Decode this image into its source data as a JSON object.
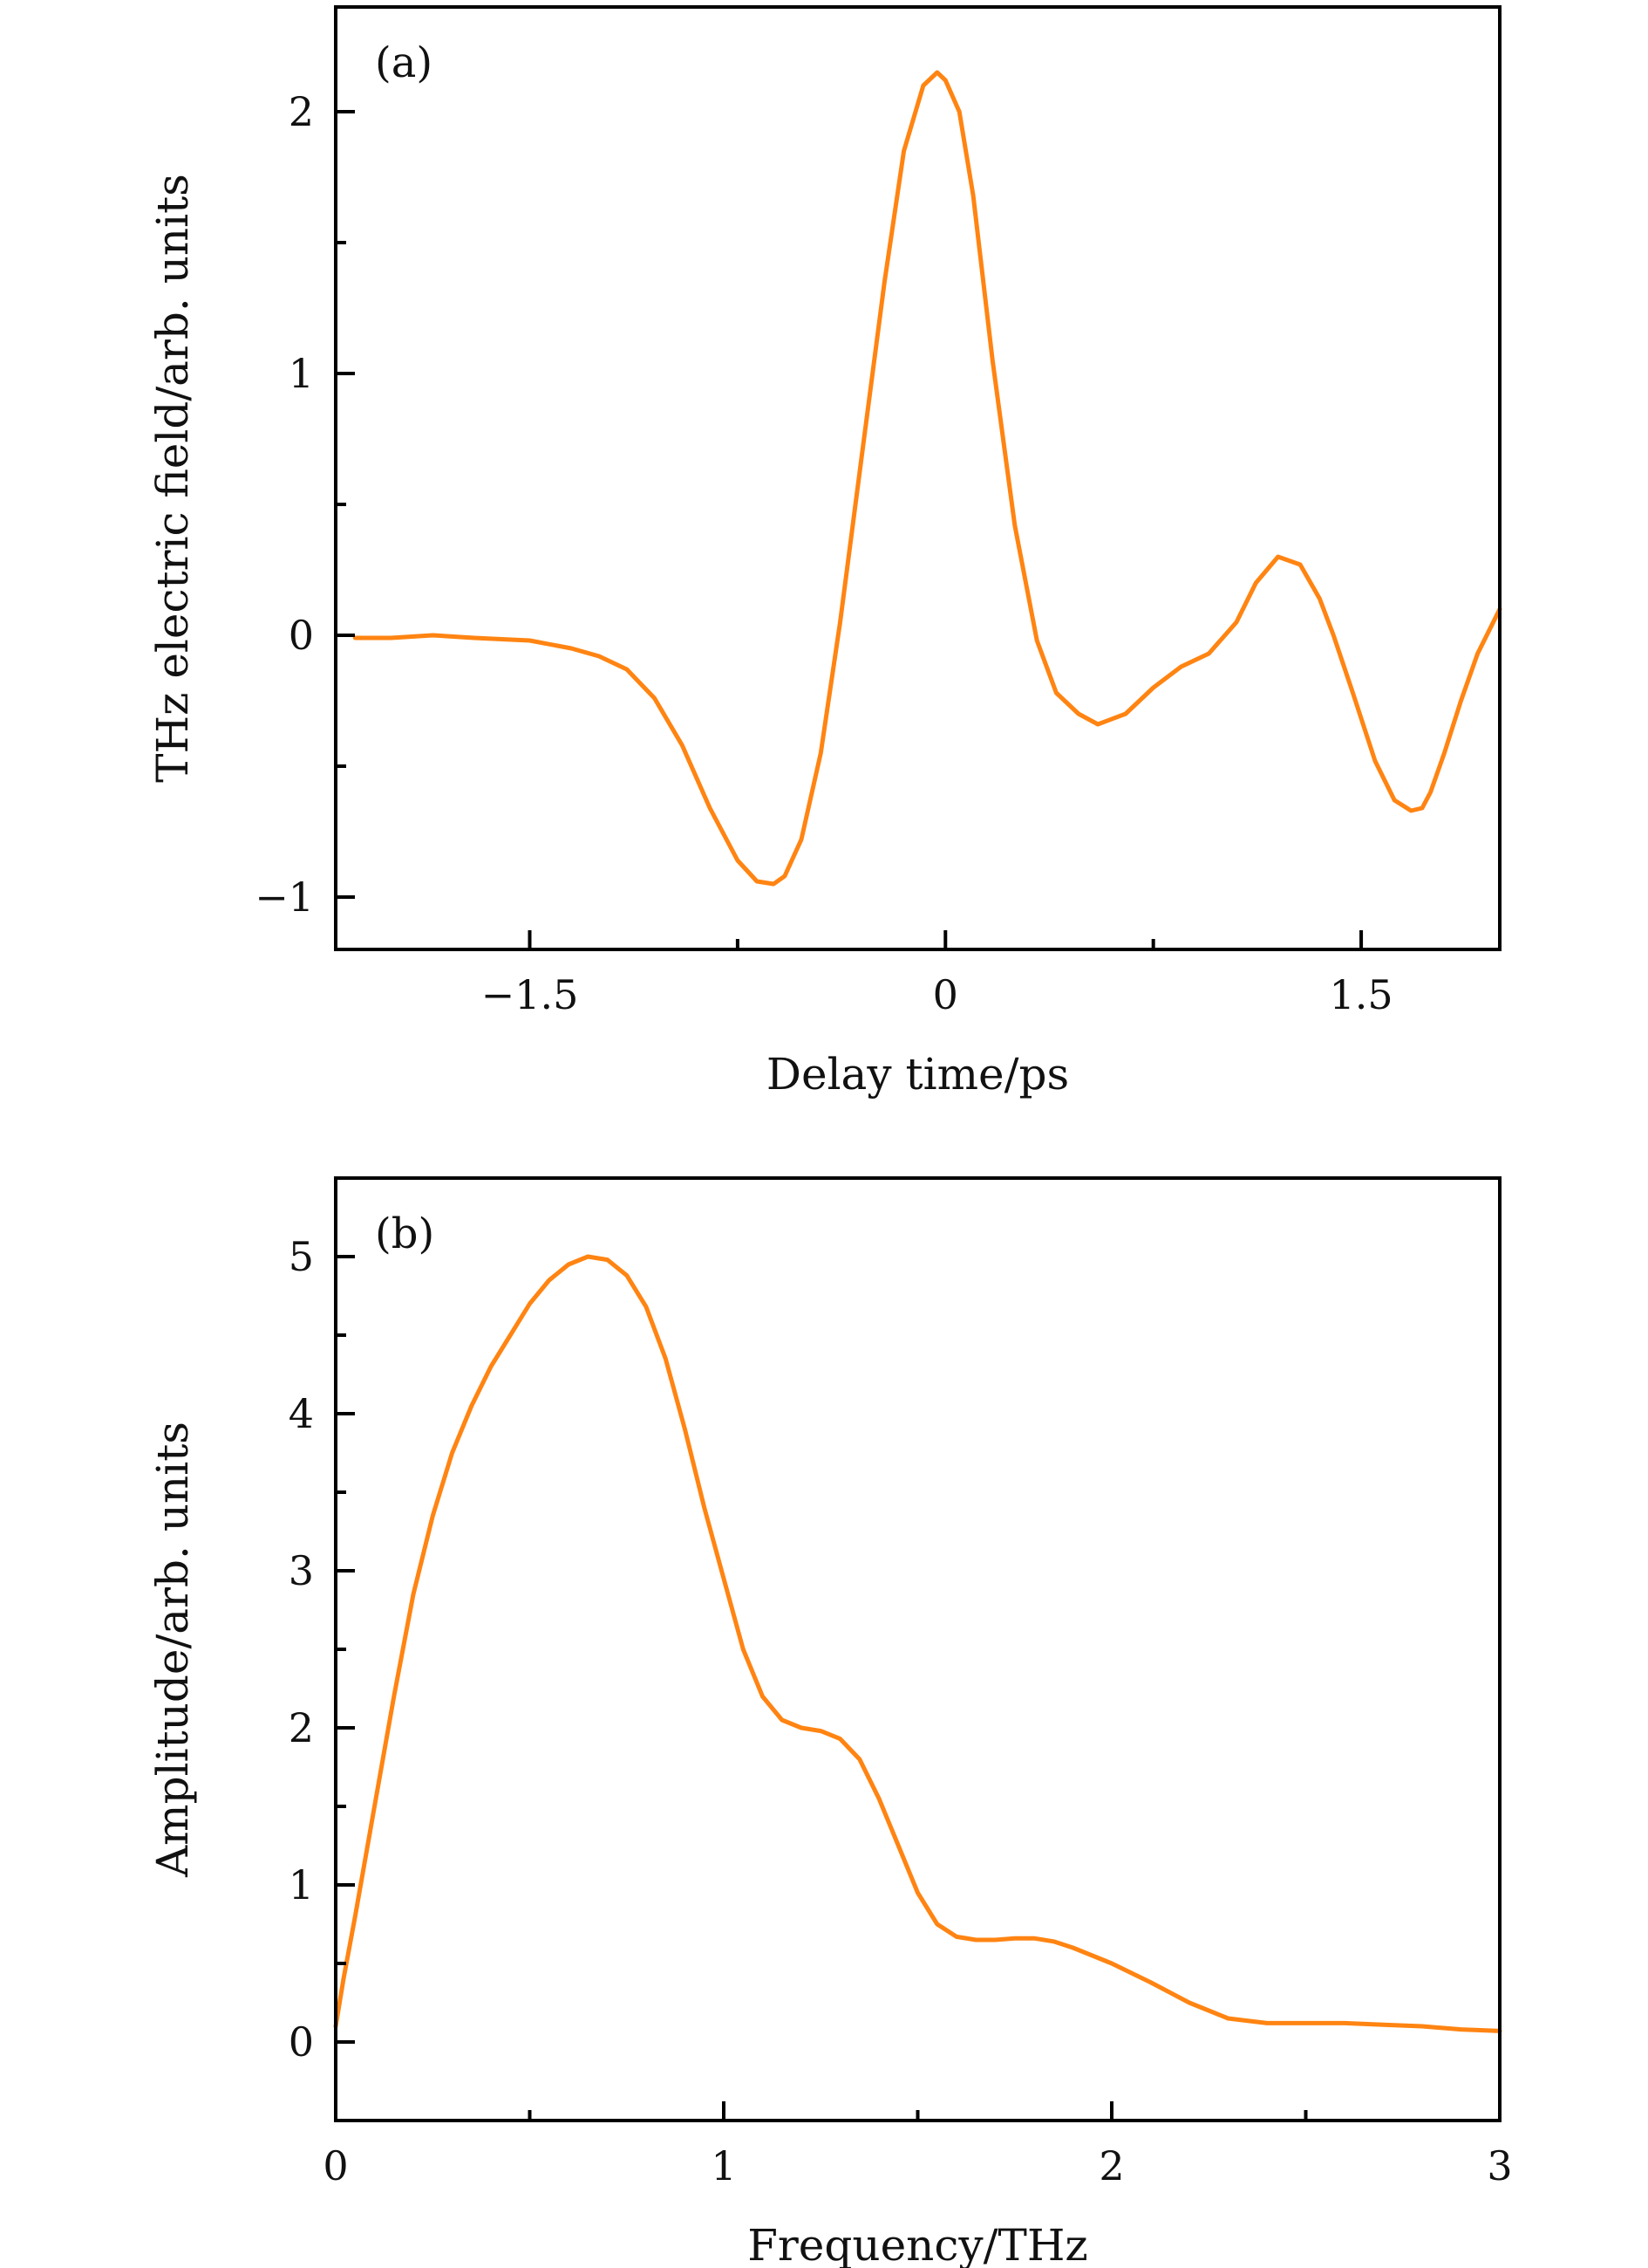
{
  "colors": {
    "line": "#ff8412",
    "axis": "#000000",
    "background": "#ffffff"
  },
  "chart_data": [
    {
      "id": "a",
      "type": "line",
      "panel_label": "(a)",
      "xlabel": "Delay time/ps",
      "ylabel": "THz electric field/arb. units",
      "xlim": [
        -2.2,
        2.0
      ],
      "ylim": [
        -1.2,
        2.4
      ],
      "grid": false,
      "legend": "none",
      "xticks": [
        {
          "value": -1.5,
          "label": "−1.5"
        },
        {
          "value": 0,
          "label": "0"
        },
        {
          "value": 1.5,
          "label": "1.5"
        }
      ],
      "xminor": [
        -0.75,
        0.75
      ],
      "yticks": [
        {
          "value": -1,
          "label": "−1"
        },
        {
          "value": 0,
          "label": "0"
        },
        {
          "value": 1,
          "label": "1"
        },
        {
          "value": 2,
          "label": "2"
        }
      ],
      "yminor": [
        -0.5,
        0.5,
        1.5
      ],
      "series": [
        {
          "x": [
            -2.13,
            -2.0,
            -1.85,
            -1.7,
            -1.5,
            -1.35,
            -1.25,
            -1.15,
            -1.05,
            -0.95,
            -0.85,
            -0.75,
            -0.68,
            -0.62,
            -0.58,
            -0.52,
            -0.45,
            -0.38,
            -0.3,
            -0.22,
            -0.15,
            -0.08,
            -0.03,
            0.0,
            0.05,
            0.1,
            0.17,
            0.25,
            0.33,
            0.4,
            0.48,
            0.55,
            0.65,
            0.75,
            0.85,
            0.95,
            1.05,
            1.12,
            1.2,
            1.28,
            1.35,
            1.4,
            1.47,
            1.55,
            1.62,
            1.68,
            1.72,
            1.75,
            1.8,
            1.86,
            1.92,
            2.0
          ],
          "y": [
            -0.01,
            -0.01,
            0.0,
            -0.01,
            -0.02,
            -0.05,
            -0.08,
            -0.13,
            -0.24,
            -0.42,
            -0.66,
            -0.86,
            -0.94,
            -0.95,
            -0.92,
            -0.78,
            -0.45,
            0.05,
            0.7,
            1.35,
            1.85,
            2.1,
            2.15,
            2.12,
            2.0,
            1.68,
            1.05,
            0.42,
            -0.02,
            -0.22,
            -0.3,
            -0.34,
            -0.3,
            -0.2,
            -0.12,
            -0.07,
            0.05,
            0.2,
            0.3,
            0.27,
            0.14,
            0.0,
            -0.22,
            -0.48,
            -0.63,
            -0.67,
            -0.66,
            -0.6,
            -0.45,
            -0.25,
            -0.07,
            0.1
          ]
        }
      ]
    },
    {
      "id": "b",
      "type": "line",
      "panel_label": "(b)",
      "xlabel": "Frequency/THz",
      "ylabel": "Amplitude/arb. units",
      "xlim": [
        0,
        3
      ],
      "ylim": [
        -0.5,
        5.5
      ],
      "grid": false,
      "legend": "none",
      "xticks": [
        {
          "value": 0,
          "label": "0"
        },
        {
          "value": 1,
          "label": "1"
        },
        {
          "value": 2,
          "label": "2"
        },
        {
          "value": 3,
          "label": "3"
        }
      ],
      "xminor": [
        0.5,
        1.5,
        2.5
      ],
      "yticks": [
        {
          "value": 0,
          "label": "0"
        },
        {
          "value": 1,
          "label": "1"
        },
        {
          "value": 2,
          "label": "2"
        },
        {
          "value": 3,
          "label": "3"
        },
        {
          "value": 4,
          "label": "4"
        },
        {
          "value": 5,
          "label": "5"
        }
      ],
      "yminor": [
        0.5,
        1.5,
        2.5,
        3.5,
        4.5
      ],
      "series": [
        {
          "x": [
            0.0,
            0.02,
            0.05,
            0.1,
            0.15,
            0.2,
            0.25,
            0.3,
            0.35,
            0.4,
            0.45,
            0.5,
            0.55,
            0.6,
            0.65,
            0.7,
            0.75,
            0.8,
            0.85,
            0.9,
            0.95,
            1.0,
            1.05,
            1.1,
            1.15,
            1.2,
            1.25,
            1.3,
            1.35,
            1.4,
            1.45,
            1.5,
            1.55,
            1.6,
            1.65,
            1.7,
            1.75,
            1.8,
            1.85,
            1.9,
            1.95,
            2.0,
            2.1,
            2.2,
            2.3,
            2.4,
            2.5,
            2.6,
            2.7,
            2.8,
            2.9,
            3.0
          ],
          "y": [
            0.1,
            0.4,
            0.8,
            1.5,
            2.2,
            2.85,
            3.35,
            3.75,
            4.05,
            4.3,
            4.5,
            4.7,
            4.85,
            4.95,
            5.0,
            4.98,
            4.88,
            4.68,
            4.35,
            3.9,
            3.4,
            2.95,
            2.5,
            2.2,
            2.05,
            2.0,
            1.98,
            1.93,
            1.8,
            1.55,
            1.25,
            0.95,
            0.75,
            0.67,
            0.65,
            0.65,
            0.66,
            0.66,
            0.64,
            0.6,
            0.55,
            0.5,
            0.38,
            0.25,
            0.15,
            0.12,
            0.12,
            0.12,
            0.11,
            0.1,
            0.08,
            0.07
          ]
        }
      ]
    }
  ]
}
